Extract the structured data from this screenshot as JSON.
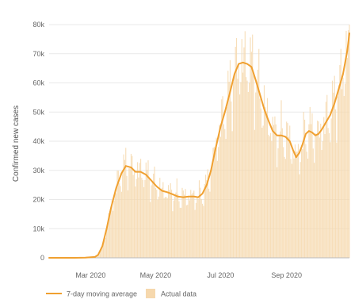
{
  "chart_data": {
    "type": "line",
    "ylabel": "Confirmed new cases",
    "ylim": [
      0,
      80000
    ],
    "y_ticks": [
      {
        "value": 0,
        "label": "0"
      },
      {
        "value": 10000,
        "label": "10k"
      },
      {
        "value": 20000,
        "label": "20k"
      },
      {
        "value": 30000,
        "label": "30k"
      },
      {
        "value": 40000,
        "label": "40k"
      },
      {
        "value": 50000,
        "label": "50k"
      },
      {
        "value": 60000,
        "label": "60k"
      },
      {
        "value": 70000,
        "label": "70k"
      },
      {
        "value": 80000,
        "label": "80k"
      }
    ],
    "x_range": [
      "2020-01-22",
      "2020-10-30"
    ],
    "x_ticks": [
      {
        "date": "2020-03-01",
        "label": "Mar 2020"
      },
      {
        "date": "2020-05-01",
        "label": "May 2020"
      },
      {
        "date": "2020-07-01",
        "label": "Jul 2020"
      },
      {
        "date": "2020-09-01",
        "label": "Sep 2020"
      }
    ],
    "grid": true,
    "legend_position": "bottom-left",
    "series": [
      {
        "name": "7-day moving average",
        "color": "#f0a030",
        "style": "line",
        "points": [
          [
            "2020-01-22",
            0
          ],
          [
            "2020-02-01",
            0
          ],
          [
            "2020-02-15",
            0
          ],
          [
            "2020-02-25",
            50
          ],
          [
            "2020-03-05",
            300
          ],
          [
            "2020-03-08",
            1000
          ],
          [
            "2020-03-12",
            4000
          ],
          [
            "2020-03-16",
            10000
          ],
          [
            "2020-03-20",
            17000
          ],
          [
            "2020-03-25",
            24000
          ],
          [
            "2020-03-30",
            29000
          ],
          [
            "2020-04-03",
            31500
          ],
          [
            "2020-04-08",
            31000
          ],
          [
            "2020-04-12",
            29500
          ],
          [
            "2020-04-17",
            29500
          ],
          [
            "2020-04-22",
            28500
          ],
          [
            "2020-04-27",
            26500
          ],
          [
            "2020-05-02",
            24500
          ],
          [
            "2020-05-07",
            23000
          ],
          [
            "2020-05-12",
            22500
          ],
          [
            "2020-05-17",
            21800
          ],
          [
            "2020-05-22",
            21000
          ],
          [
            "2020-05-27",
            20800
          ],
          [
            "2020-06-01",
            21000
          ],
          [
            "2020-06-06",
            21000
          ],
          [
            "2020-06-10",
            20800
          ],
          [
            "2020-06-14",
            22000
          ],
          [
            "2020-06-18",
            25000
          ],
          [
            "2020-06-22",
            30000
          ],
          [
            "2020-06-26",
            37000
          ],
          [
            "2020-07-01",
            45000
          ],
          [
            "2020-07-05",
            50000
          ],
          [
            "2020-07-10",
            57000
          ],
          [
            "2020-07-14",
            63000
          ],
          [
            "2020-07-18",
            66500
          ],
          [
            "2020-07-22",
            67000
          ],
          [
            "2020-07-26",
            66500
          ],
          [
            "2020-07-30",
            65500
          ],
          [
            "2020-08-03",
            61000
          ],
          [
            "2020-08-07",
            56000
          ],
          [
            "2020-08-11",
            51000
          ],
          [
            "2020-08-15",
            47000
          ],
          [
            "2020-08-19",
            43500
          ],
          [
            "2020-08-23",
            42000
          ],
          [
            "2020-08-27",
            42000
          ],
          [
            "2020-08-31",
            41500
          ],
          [
            "2020-09-04",
            40000
          ],
          [
            "2020-09-07",
            37000
          ],
          [
            "2020-09-10",
            34500
          ],
          [
            "2020-09-13",
            36000
          ],
          [
            "2020-09-16",
            39000
          ],
          [
            "2020-09-19",
            42500
          ],
          [
            "2020-09-22",
            43500
          ],
          [
            "2020-09-25",
            43000
          ],
          [
            "2020-09-28",
            42000
          ],
          [
            "2020-10-01",
            42500
          ],
          [
            "2020-10-04",
            44000
          ],
          [
            "2020-10-08",
            46500
          ],
          [
            "2020-10-12",
            49000
          ],
          [
            "2020-10-16",
            53000
          ],
          [
            "2020-10-20",
            58000
          ],
          [
            "2020-10-24",
            63000
          ],
          [
            "2020-10-28",
            71000
          ],
          [
            "2020-10-30",
            77000
          ]
        ]
      },
      {
        "name": "Actual data",
        "color": "#f6d8ad",
        "style": "bar",
        "daily": true
      }
    ]
  }
}
